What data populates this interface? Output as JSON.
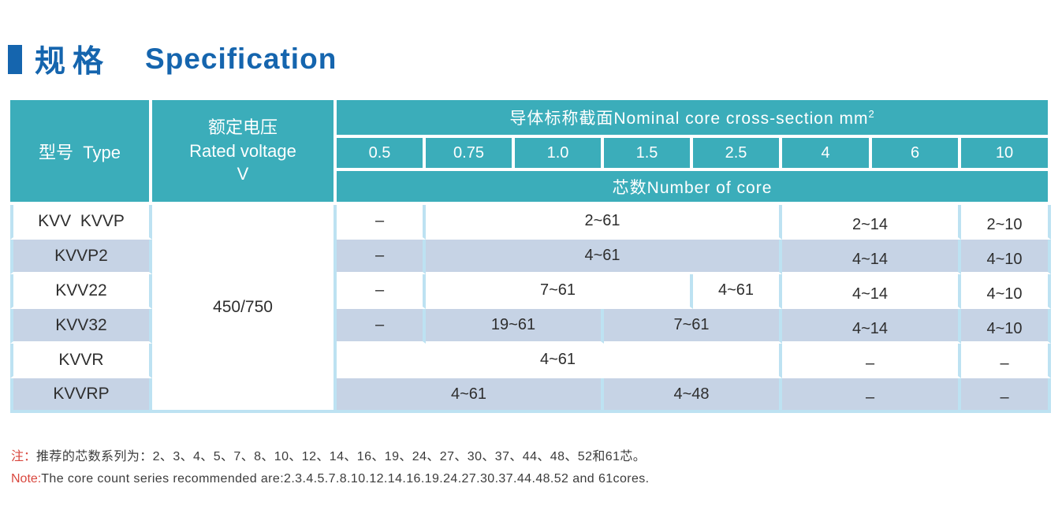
{
  "title": {
    "zh": "规格",
    "en": "Specification"
  },
  "colors": {
    "teal": "#3BADBA",
    "rowblue": "#C6D3E5",
    "border": "#BDE2F2",
    "titleblue": "#1565AE",
    "red": "#D9473E"
  },
  "table": {
    "headers": {
      "type": "型号  Type",
      "voltage": "额定电压\nRated voltage\nV",
      "section": "导体标称截面Nominal core cross-section mm",
      "section_sup": "2",
      "sizes": [
        "0.5",
        "0.75",
        "1.0",
        "1.5",
        "2.5",
        "4",
        "6",
        "10"
      ],
      "core": "芯数Number of core"
    },
    "voltage_value": "450/750",
    "rows": [
      {
        "type": "KVV  KVVP",
        "cells": [
          {
            "span": 1,
            "v": "–"
          },
          {
            "span": 4,
            "v": "2~61"
          },
          {
            "span": 2,
            "v": "2~14",
            "low": true
          },
          {
            "span": 1,
            "v": "2~10",
            "low": true
          }
        ]
      },
      {
        "type": "KVVP2",
        "cells": [
          {
            "span": 1,
            "v": "–"
          },
          {
            "span": 4,
            "v": "4~61"
          },
          {
            "span": 2,
            "v": "4~14",
            "low": true
          },
          {
            "span": 1,
            "v": "4~10",
            "low": true
          }
        ]
      },
      {
        "type": "KVV22",
        "cells": [
          {
            "span": 1,
            "v": "–"
          },
          {
            "span": 3,
            "v": "7~61"
          },
          {
            "span": 1,
            "v": "4~61"
          },
          {
            "span": 2,
            "v": "4~14",
            "low": true
          },
          {
            "span": 1,
            "v": "4~10",
            "low": true
          }
        ]
      },
      {
        "type": "KVV32",
        "cells": [
          {
            "span": 1,
            "v": "–"
          },
          {
            "span": 2,
            "v": "19~61"
          },
          {
            "span": 2,
            "v": "7~61"
          },
          {
            "span": 2,
            "v": "4~14",
            "low": true
          },
          {
            "span": 1,
            "v": "4~10",
            "low": true
          }
        ]
      },
      {
        "type": "KVVR",
        "cells": [
          {
            "span": 5,
            "v": "4~61"
          },
          {
            "span": 2,
            "v": "–",
            "low": true
          },
          {
            "span": 1,
            "v": "–",
            "low": true
          }
        ]
      },
      {
        "type": "KVVRP",
        "cells": [
          {
            "span": 3,
            "v": "4~61"
          },
          {
            "span": 2,
            "v": "4~48"
          },
          {
            "span": 2,
            "v": "–",
            "low": true
          },
          {
            "span": 1,
            "v": "–",
            "low": true
          }
        ]
      }
    ]
  },
  "note": {
    "zh_label": "注：",
    "zh_text": "推荐的芯数系列为：2、3、4、5、7、8、10、12、14、16、19、24、27、30、37、44、48、52和61芯。",
    "en_label": "Note:",
    "en_text": "The core count series recommended are:2.3.4.5.7.8.10.12.14.16.19.24.27.30.37.44.48.52 and 61cores."
  }
}
